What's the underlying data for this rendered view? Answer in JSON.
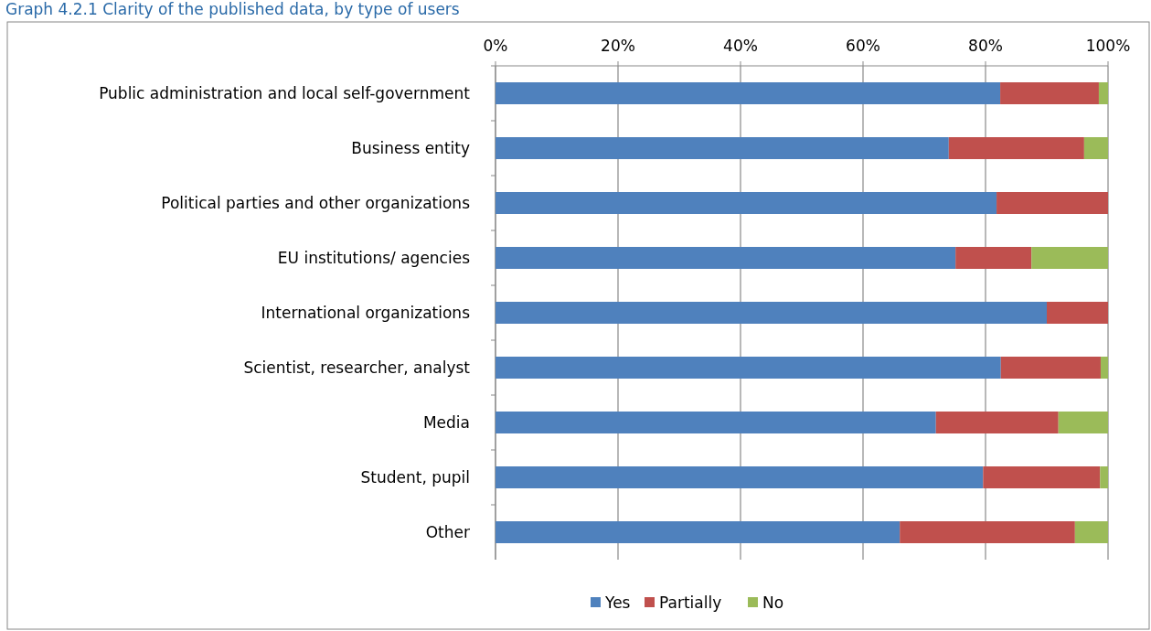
{
  "chart_data": {
    "type": "bar",
    "orientation": "horizontal",
    "stacked": true,
    "title": "Graph 4.2.1 Clarity of the published data, by type of users",
    "categories": [
      "Public administration and local self-government",
      "Business entity",
      "Political parties and other organizations",
      "EU institutions/ agencies",
      "International organizations",
      "Scientist, researcher, analyst",
      "Media",
      "Student, pupil",
      "Other"
    ],
    "series": [
      {
        "name": "Yes",
        "color": "#4f81bd",
        "values": [
          82.4,
          74.0,
          81.8,
          75.1,
          90.0,
          82.5,
          71.9,
          79.6,
          66.0
        ]
      },
      {
        "name": "Partially",
        "color": "#c0504d",
        "values": [
          16.1,
          22.1,
          18.2,
          12.4,
          10.0,
          16.3,
          20.0,
          19.1,
          28.6
        ]
      },
      {
        "name": "No",
        "color": "#9bbb59",
        "values": [
          1.5,
          3.9,
          0,
          12.5,
          0,
          1.2,
          8.1,
          1.3,
          5.4
        ]
      }
    ],
    "xlim": [
      0,
      100
    ],
    "xticks": [
      {
        "value": 0,
        "label": "0%"
      },
      {
        "value": 20,
        "label": "20%"
      },
      {
        "value": 40,
        "label": "40%"
      },
      {
        "value": 60,
        "label": "60%"
      },
      {
        "value": 80,
        "label": "80%"
      },
      {
        "value": 100,
        "label": "100%"
      }
    ],
    "grid": "x",
    "legend": "bottom"
  }
}
